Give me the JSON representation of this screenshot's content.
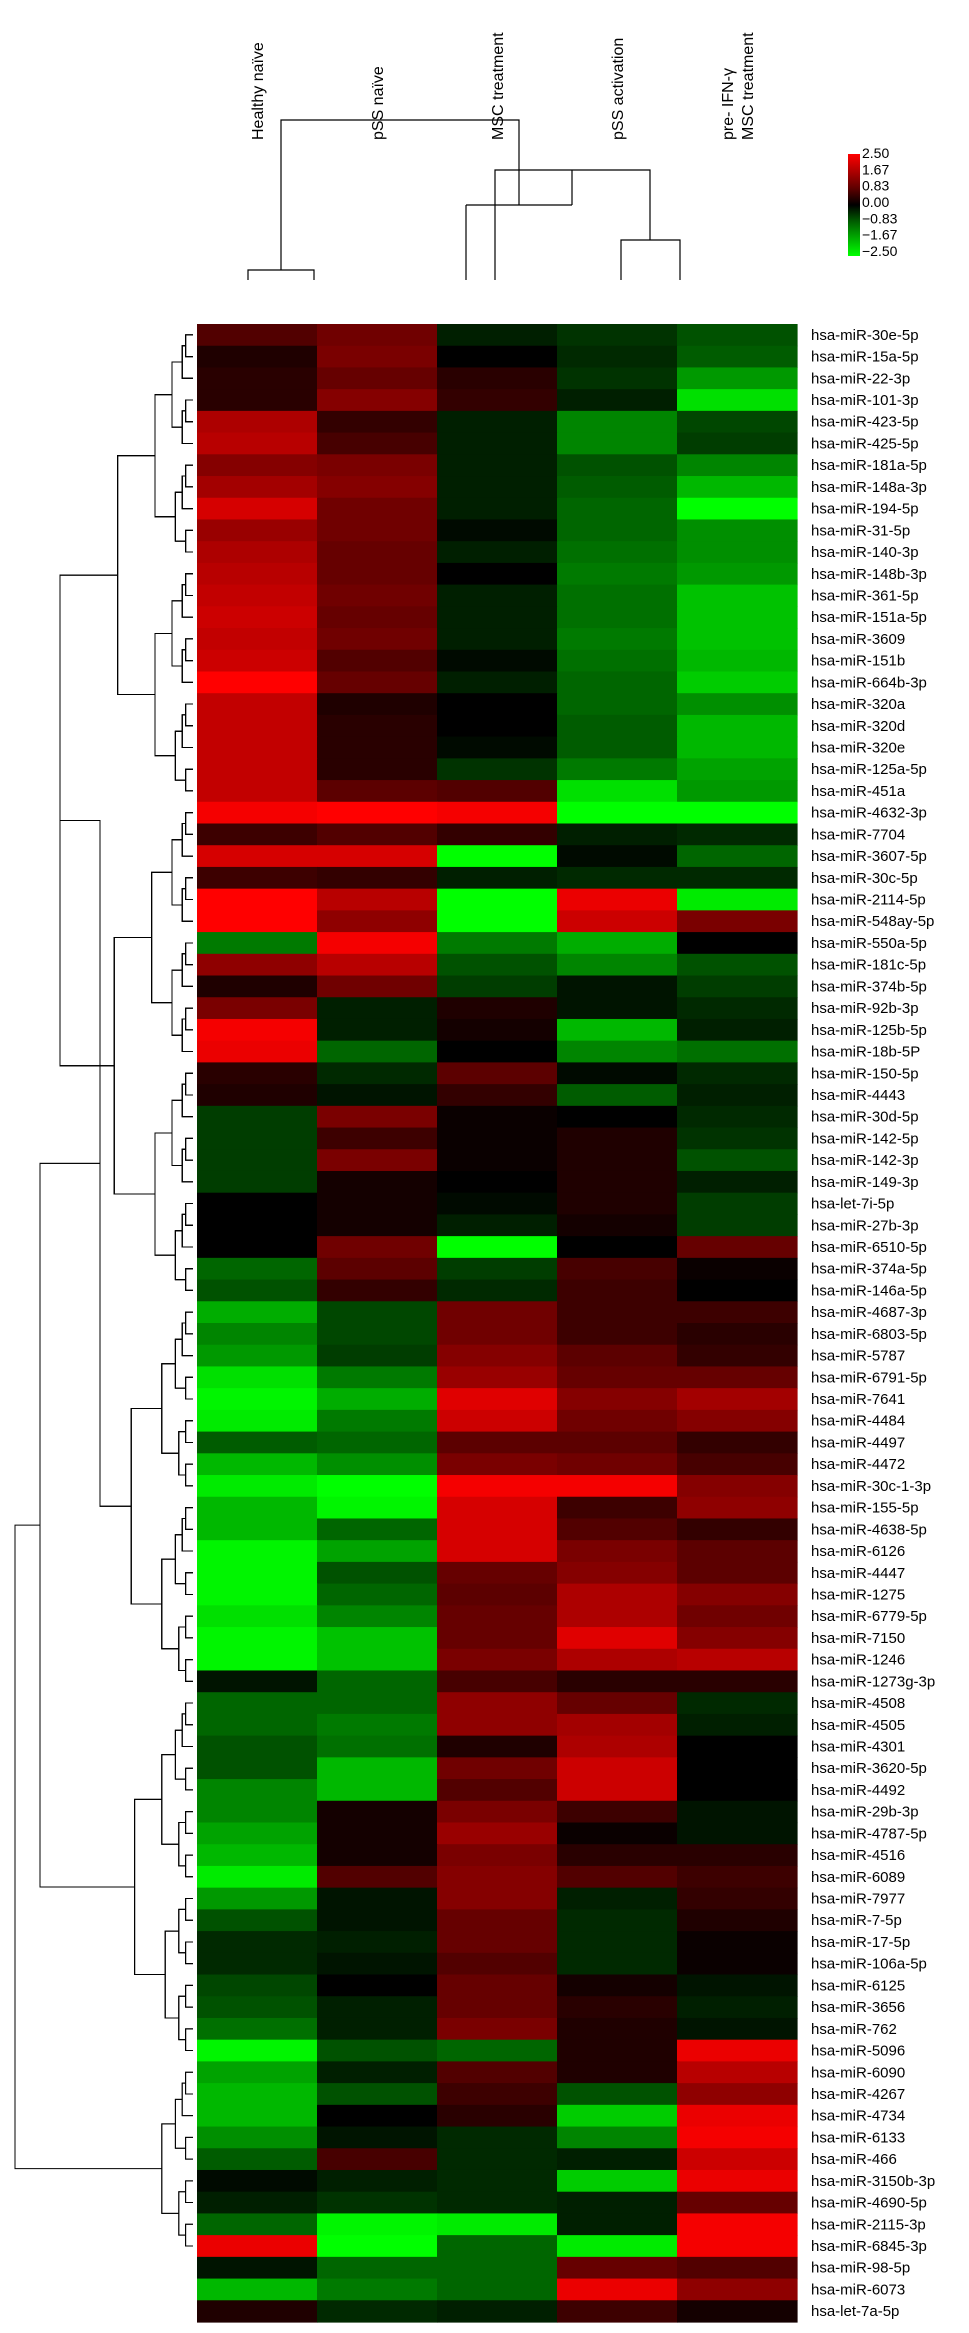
{
  "chart_data": {
    "type": "heatmap",
    "columns": [
      "Healthy naïve",
      "pSS naïve",
      "MSC treatment",
      "pSS activation",
      "pre- IFN-γ\nMSC treatment"
    ],
    "legend": {
      "ticks": [
        "2.50",
        "1.67",
        "0.83",
        "0.00",
        "−0.83",
        "−1.67",
        "−2.50"
      ],
      "colors": [
        "#ff0000",
        "#b00000",
        "#600000",
        "#000000",
        "#006000",
        "#00b000",
        "#00ff00"
      ]
    },
    "rows": [
      {
        "label": "hsa-miR-30e-5p",
        "values": [
          0.8,
          1.1,
          -0.3,
          -0.5,
          -0.8
        ]
      },
      {
        "label": "hsa-miR-15a-5p",
        "values": [
          0.3,
          1.2,
          0.0,
          -0.4,
          -0.9
        ]
      },
      {
        "label": "hsa-miR-22-3p",
        "values": [
          0.4,
          1.0,
          0.4,
          -0.5,
          -1.5
        ]
      },
      {
        "label": "hsa-miR-101-3p",
        "values": [
          0.4,
          1.3,
          0.5,
          -0.3,
          -2.2
        ]
      },
      {
        "label": "hsa-miR-423-5p",
        "values": [
          1.7,
          0.5,
          -0.3,
          -1.3,
          -0.7
        ]
      },
      {
        "label": "hsa-miR-425-5p",
        "values": [
          1.8,
          0.7,
          -0.3,
          -1.3,
          -0.6
        ]
      },
      {
        "label": "hsa-miR-181a-5p",
        "values": [
          1.3,
          1.2,
          -0.3,
          -0.8,
          -1.3
        ]
      },
      {
        "label": "hsa-miR-148a-3p",
        "values": [
          1.6,
          1.3,
          -0.3,
          -0.9,
          -1.8
        ]
      },
      {
        "label": "hsa-miR-194-5p",
        "values": [
          2.1,
          1.1,
          -0.3,
          -1.0,
          -2.5
        ]
      },
      {
        "label": "hsa-miR-31-5p",
        "values": [
          1.5,
          1.1,
          -0.1,
          -1.0,
          -1.4
        ]
      },
      {
        "label": "hsa-miR-140-3p",
        "values": [
          1.7,
          1.0,
          -0.3,
          -1.1,
          -1.4
        ]
      },
      {
        "label": "hsa-miR-148b-3p",
        "values": [
          1.8,
          1.0,
          0.0,
          -1.2,
          -1.5
        ]
      },
      {
        "label": "hsa-miR-361-5p",
        "values": [
          1.9,
          1.1,
          -0.3,
          -1.1,
          -1.9
        ]
      },
      {
        "label": "hsa-miR-151a-5p",
        "values": [
          2.0,
          1.0,
          -0.3,
          -1.1,
          -1.9
        ]
      },
      {
        "label": "hsa-miR-3609",
        "values": [
          1.9,
          1.1,
          -0.3,
          -1.2,
          -1.9
        ]
      },
      {
        "label": "hsa-miR-151b",
        "values": [
          2.0,
          0.8,
          -0.1,
          -1.1,
          -1.8
        ]
      },
      {
        "label": "hsa-miR-664b-3p",
        "values": [
          2.5,
          1.0,
          -0.3,
          -1.0,
          -2.0
        ]
      },
      {
        "label": "hsa-miR-320a",
        "values": [
          1.9,
          0.3,
          0.0,
          -1.0,
          -1.4
        ]
      },
      {
        "label": "hsa-miR-320d",
        "values": [
          1.9,
          0.4,
          0.0,
          -0.9,
          -1.8
        ]
      },
      {
        "label": "hsa-miR-320e",
        "values": [
          1.9,
          0.4,
          -0.1,
          -0.9,
          -1.8
        ]
      },
      {
        "label": "hsa-miR-125a-5p",
        "values": [
          1.9,
          0.4,
          -0.5,
          -1.2,
          -1.6
        ]
      },
      {
        "label": "hsa-miR-451a",
        "values": [
          1.9,
          0.9,
          0.8,
          -2.2,
          -1.5
        ]
      },
      {
        "label": "hsa-miR-4632-3p",
        "values": [
          2.4,
          2.5,
          2.4,
          -2.5,
          -2.5
        ]
      },
      {
        "label": "hsa-miR-7704",
        "values": [
          0.6,
          0.8,
          0.5,
          -0.3,
          -0.4
        ]
      },
      {
        "label": "hsa-miR-3607-5p",
        "values": [
          2.1,
          2.1,
          -2.5,
          -0.1,
          -1.0
        ]
      },
      {
        "label": "hsa-miR-30c-5p",
        "values": [
          0.6,
          0.5,
          -0.3,
          -0.4,
          -0.4
        ]
      },
      {
        "label": "hsa-miR-2114-5p",
        "values": [
          2.5,
          1.8,
          -2.5,
          2.3,
          -2.3
        ]
      },
      {
        "label": "hsa-miR-548ay-5p",
        "values": [
          2.5,
          1.4,
          -2.5,
          2.0,
          1.2
        ]
      },
      {
        "label": "hsa-miR-550a-5p",
        "values": [
          -1.2,
          2.4,
          -1.2,
          -1.7,
          0.0
        ]
      },
      {
        "label": "hsa-miR-181c-5p",
        "values": [
          1.4,
          1.8,
          -0.8,
          -1.3,
          -0.8
        ]
      },
      {
        "label": "hsa-miR-374b-5p",
        "values": [
          0.3,
          1.1,
          -0.6,
          -0.2,
          -0.6
        ]
      },
      {
        "label": "hsa-miR-92b-3p",
        "values": [
          1.2,
          -0.3,
          0.3,
          -0.2,
          -0.4
        ]
      },
      {
        "label": "hsa-miR-125b-5p",
        "values": [
          2.4,
          -0.3,
          0.2,
          -1.8,
          -0.3
        ]
      },
      {
        "label": "hsa-miR-18b-5P",
        "values": [
          2.3,
          -1.0,
          0.0,
          -1.3,
          -1.1
        ]
      },
      {
        "label": "hsa-miR-150-5p",
        "values": [
          0.4,
          -0.4,
          0.9,
          -0.1,
          -0.4
        ]
      },
      {
        "label": "hsa-miR-4443",
        "values": [
          0.3,
          -0.2,
          0.5,
          -0.9,
          -0.3
        ]
      },
      {
        "label": "hsa-miR-30d-5p",
        "values": [
          -0.6,
          1.2,
          0.1,
          0.0,
          -0.4
        ]
      },
      {
        "label": "hsa-miR-142-5p",
        "values": [
          -0.6,
          0.6,
          0.1,
          0.3,
          -0.5
        ]
      },
      {
        "label": "hsa-miR-142-3p",
        "values": [
          -0.6,
          1.2,
          0.1,
          0.3,
          -0.8
        ]
      },
      {
        "label": "hsa-miR-149-3p",
        "values": [
          -0.6,
          0.2,
          0.0,
          0.3,
          -0.3
        ]
      },
      {
        "label": "hsa-let-7i-5p",
        "values": [
          0.0,
          0.2,
          -0.1,
          0.3,
          -0.6
        ]
      },
      {
        "label": "hsa-miR-27b-3p",
        "values": [
          0.0,
          0.2,
          -0.3,
          0.2,
          -0.6
        ]
      },
      {
        "label": "hsa-miR-6510-5p",
        "values": [
          0.0,
          1.1,
          -2.5,
          0.0,
          1.0
        ]
      },
      {
        "label": "hsa-miR-374a-5p",
        "values": [
          -1.0,
          0.9,
          -0.6,
          0.7,
          0.1
        ]
      },
      {
        "label": "hsa-miR-146a-5p",
        "values": [
          -0.8,
          0.5,
          -0.4,
          0.6,
          0.0
        ]
      },
      {
        "label": "hsa-miR-4687-3p",
        "values": [
          -1.7,
          -0.7,
          1.1,
          0.6,
          0.6
        ]
      },
      {
        "label": "hsa-miR-6803-5p",
        "values": [
          -1.3,
          -0.7,
          1.1,
          0.6,
          0.4
        ]
      },
      {
        "label": "hsa-miR-5787",
        "values": [
          -1.5,
          -0.6,
          1.3,
          0.9,
          0.5
        ]
      },
      {
        "label": "hsa-miR-6791-5p",
        "values": [
          -2.2,
          -1.2,
          1.5,
          1.0,
          1.0
        ]
      },
      {
        "label": "hsa-miR-7641",
        "values": [
          -2.4,
          -1.7,
          2.2,
          1.3,
          1.6
        ]
      },
      {
        "label": "hsa-miR-4484",
        "values": [
          -2.3,
          -1.2,
          2.0,
          1.1,
          1.3
        ]
      },
      {
        "label": "hsa-miR-4497",
        "values": [
          -0.9,
          -1.0,
          0.9,
          0.9,
          0.5
        ]
      },
      {
        "label": "hsa-miR-4472",
        "values": [
          -1.8,
          -1.4,
          1.2,
          1.1,
          0.7
        ]
      },
      {
        "label": "hsa-miR-30c-1-3p",
        "values": [
          -2.3,
          -2.5,
          2.4,
          2.4,
          1.3
        ]
      },
      {
        "label": "hsa-miR-155-5p",
        "values": [
          -1.8,
          -2.4,
          2.1,
          0.6,
          1.4
        ]
      },
      {
        "label": "hsa-miR-4638-5p",
        "values": [
          -1.8,
          -1.0,
          2.1,
          0.8,
          0.5
        ]
      },
      {
        "label": "hsa-miR-6126",
        "values": [
          -2.4,
          -1.6,
          2.1,
          1.2,
          0.9
        ]
      },
      {
        "label": "hsa-miR-4447",
        "values": [
          -2.4,
          -0.8,
          1.0,
          1.3,
          0.9
        ]
      },
      {
        "label": "hsa-miR-1275",
        "values": [
          -2.4,
          -1.0,
          0.9,
          1.7,
          1.3
        ]
      },
      {
        "label": "hsa-miR-6779-5p",
        "values": [
          -2.2,
          -1.3,
          1.0,
          1.7,
          1.1
        ]
      },
      {
        "label": "hsa-miR-7150",
        "values": [
          -2.4,
          -1.9,
          1.0,
          2.2,
          1.3
        ]
      },
      {
        "label": "hsa-miR-1246",
        "values": [
          -2.4,
          -1.9,
          1.2,
          1.7,
          1.8
        ]
      },
      {
        "label": "hsa-miR-1273g-3p",
        "values": [
          -0.2,
          -1.0,
          0.7,
          0.4,
          0.4
        ]
      },
      {
        "label": "hsa-miR-4508",
        "values": [
          -1.0,
          -1.0,
          1.4,
          1.0,
          -0.4
        ]
      },
      {
        "label": "hsa-miR-4505",
        "values": [
          -1.0,
          -1.2,
          1.4,
          1.6,
          -0.3
        ]
      },
      {
        "label": "hsa-miR-4301",
        "values": [
          -0.8,
          -1.1,
          0.3,
          1.7,
          0.0
        ]
      },
      {
        "label": "hsa-miR-3620-5p",
        "values": [
          -0.8,
          -1.8,
          1.1,
          2.0,
          0.0
        ]
      },
      {
        "label": "hsa-miR-4492",
        "values": [
          -1.3,
          -1.8,
          0.8,
          2.0,
          0.0
        ]
      },
      {
        "label": "hsa-miR-29b-3p",
        "values": [
          -1.3,
          0.2,
          1.2,
          0.6,
          -0.2
        ]
      },
      {
        "label": "hsa-miR-4787-5p",
        "values": [
          -1.6,
          0.2,
          1.5,
          0.1,
          -0.2
        ]
      },
      {
        "label": "hsa-miR-4516",
        "values": [
          -1.8,
          0.2,
          1.2,
          0.4,
          0.4
        ]
      },
      {
        "label": "hsa-miR-6089",
        "values": [
          -2.3,
          0.8,
          1.3,
          0.8,
          0.6
        ]
      },
      {
        "label": "hsa-miR-7977",
        "values": [
          -1.5,
          -0.2,
          1.3,
          -0.3,
          0.5
        ]
      },
      {
        "label": "hsa-miR-7-5p",
        "values": [
          -0.8,
          -0.2,
          1.0,
          -0.4,
          0.3
        ]
      },
      {
        "label": "hsa-miR-17-5p",
        "values": [
          -0.4,
          -0.3,
          1.0,
          -0.4,
          0.1
        ]
      },
      {
        "label": "hsa-miR-106a-5p",
        "values": [
          -0.4,
          -0.2,
          0.8,
          -0.4,
          0.1
        ]
      },
      {
        "label": "hsa-miR-6125",
        "values": [
          -0.7,
          0.0,
          1.0,
          0.2,
          -0.2
        ]
      },
      {
        "label": "hsa-miR-3656",
        "values": [
          -0.8,
          -0.3,
          1.0,
          0.4,
          -0.3
        ]
      },
      {
        "label": "hsa-miR-762",
        "values": [
          -1.1,
          -0.3,
          1.2,
          0.3,
          -0.2
        ]
      },
      {
        "label": "hsa-miR-5096",
        "values": [
          -2.4,
          -0.8,
          -1.0,
          0.3,
          2.3
        ]
      },
      {
        "label": "hsa-miR-6090",
        "values": [
          -1.6,
          -0.3,
          0.8,
          0.3,
          1.8
        ]
      },
      {
        "label": "hsa-miR-4267",
        "values": [
          -1.8,
          -0.8,
          0.6,
          -0.8,
          1.4
        ]
      },
      {
        "label": "hsa-miR-4734",
        "values": [
          -1.8,
          0.0,
          0.4,
          -2.0,
          2.3
        ]
      },
      {
        "label": "hsa-miR-6133",
        "values": [
          -1.4,
          -0.2,
          -0.4,
          -1.3,
          2.4
        ]
      },
      {
        "label": "hsa-miR-466",
        "values": [
          -0.9,
          0.7,
          -0.4,
          -0.3,
          2.0
        ]
      },
      {
        "label": "hsa-miR-3150b-3p",
        "values": [
          -0.1,
          -0.3,
          -0.4,
          -2.0,
          2.3
        ]
      },
      {
        "label": "hsa-miR-4690-5p",
        "values": [
          -0.3,
          -0.5,
          -0.4,
          -0.3,
          1.0
        ]
      },
      {
        "label": "hsa-miR-2115-3p",
        "values": [
          -1.0,
          -2.4,
          -2.3,
          -0.3,
          2.4
        ]
      },
      {
        "label": "hsa-miR-6845-3p",
        "values": [
          2.3,
          -2.5,
          -1.0,
          -2.3,
          2.4
        ]
      },
      {
        "label": "hsa-miR-98-5p",
        "values": [
          -0.2,
          -1.0,
          -1.0,
          1.0,
          0.8
        ]
      },
      {
        "label": "hsa-miR-6073",
        "values": [
          -1.8,
          -1.2,
          -1.0,
          2.3,
          1.4
        ]
      },
      {
        "label": "hsa-let-7a-5p",
        "values": [
          0.3,
          -0.4,
          -0.3,
          0.6,
          0.2
        ]
      }
    ]
  }
}
